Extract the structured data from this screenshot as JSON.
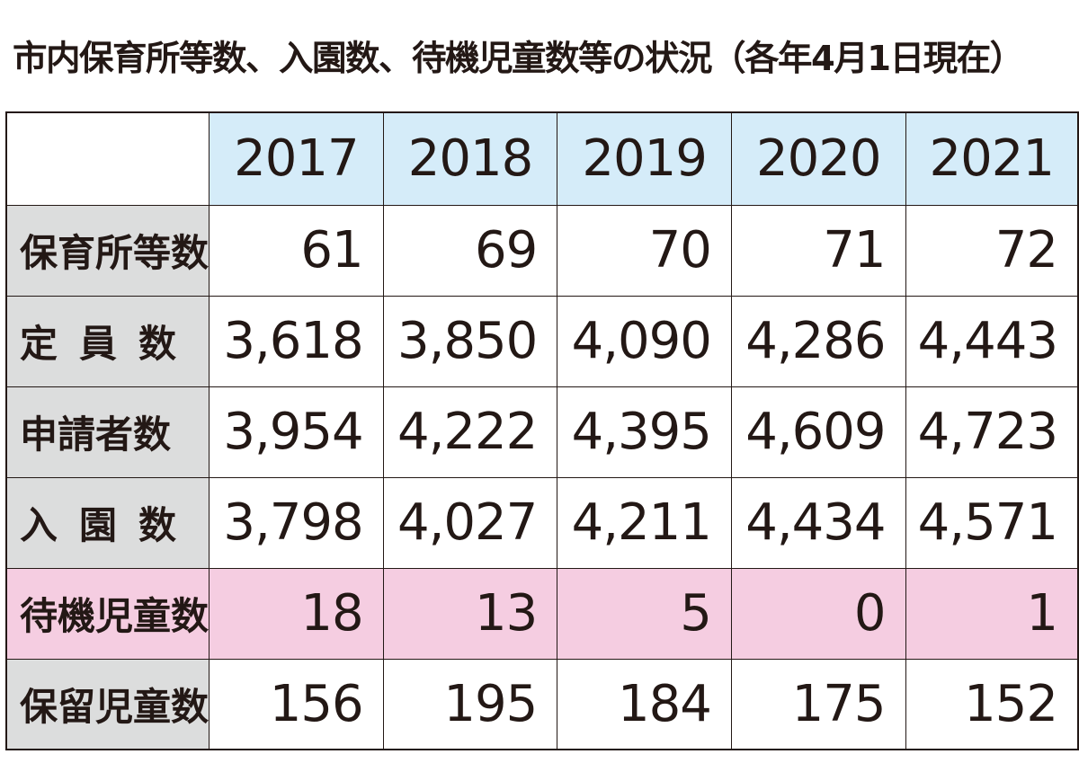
{
  "title": "市内保育所等数、入園数、待機児童数等の状況（各年4月1日現在）",
  "colors": {
    "header_bg": "#d5ecf9",
    "rowhead_bg": "#dcdddd",
    "highlight_bg": "#f5cde1",
    "border": "#231815"
  },
  "chart_data": {
    "type": "table",
    "title": "市内保育所等数、入園数、待機児童数等の状況（各年4月1日現在）",
    "columns": [
      "2017",
      "2018",
      "2019",
      "2020",
      "2021"
    ],
    "rows": [
      {
        "label": "保育所等数",
        "cells": [
          "61",
          "69",
          "70",
          "71",
          "72"
        ],
        "values": [
          61,
          69,
          70,
          71,
          72
        ]
      },
      {
        "label": "定員数",
        "cells": [
          "3,618",
          "3,850",
          "4,090",
          "4,286",
          "4,443"
        ],
        "values": [
          3618,
          3850,
          4090,
          4286,
          4443
        ]
      },
      {
        "label": "申請者数",
        "cells": [
          "3,954",
          "4,222",
          "4,395",
          "4,609",
          "4,723"
        ],
        "values": [
          3954,
          4222,
          4395,
          4609,
          4723
        ]
      },
      {
        "label": "入園数",
        "cells": [
          "3,798",
          "4,027",
          "4,211",
          "4,434",
          "4,571"
        ],
        "values": [
          3798,
          4027,
          4211,
          4434,
          4571
        ]
      },
      {
        "label": "待機児童数",
        "cells": [
          "18",
          "13",
          "5",
          "0",
          "1"
        ],
        "values": [
          18,
          13,
          5,
          0,
          1
        ],
        "highlighted": true
      },
      {
        "label": "保留児童数",
        "cells": [
          "156",
          "195",
          "184",
          "175",
          "152"
        ],
        "values": [
          156,
          195,
          184,
          175,
          152
        ]
      }
    ]
  }
}
